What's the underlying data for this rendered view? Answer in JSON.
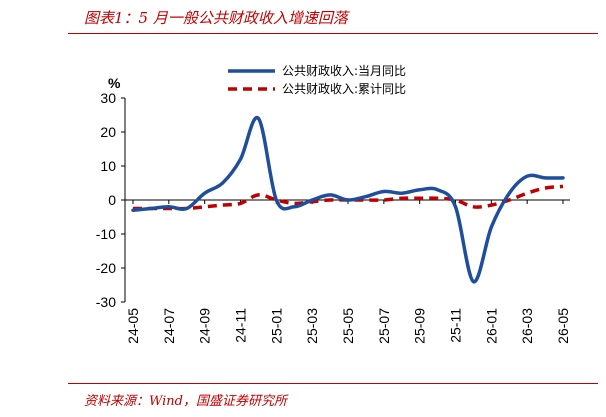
{
  "figure": {
    "title": "图表1：5 月一般公共财政收入增速回落",
    "source": "资料来源：Wind，国盛证券研究所",
    "accent_color": "#c00000"
  },
  "chart_data": {
    "type": "line",
    "unit_label": "%",
    "title": "",
    "xlabel": "",
    "ylabel": "",
    "ylim": [
      -30,
      30
    ],
    "yticks": [
      -30,
      -20,
      -10,
      0,
      10,
      20,
      30
    ],
    "x_tick_labels": [
      "24-05",
      "24-07",
      "24-09",
      "24-11",
      "25-01",
      "25-03",
      "25-05",
      "25-07",
      "25-09",
      "25-11",
      "26-01",
      "26-03",
      "26-05"
    ],
    "x": [
      "24-05",
      "24-06",
      "24-07",
      "24-08",
      "24-09",
      "24-10",
      "24-11",
      "24-12",
      "25-01",
      "25-02",
      "25-03",
      "25-04",
      "25-05",
      "25-06",
      "25-07",
      "25-08",
      "25-09",
      "25-10",
      "25-11",
      "25-12",
      "26-01",
      "26-02",
      "26-03",
      "26-04",
      "26-05"
    ],
    "grid": false,
    "legend_position": "top-center",
    "series": [
      {
        "name": "公共财政收入:当月同比",
        "color": "#1f4e9c",
        "style": "solid",
        "values": [
          -3,
          -2.5,
          -2,
          -2.5,
          2,
          5,
          12,
          24,
          0,
          -2,
          0,
          1.5,
          0,
          1,
          2.5,
          2,
          3,
          3,
          -2,
          -24,
          -8,
          2,
          7,
          6.5,
          6.5
        ]
      },
      {
        "name": "公共财政收入:累计同比",
        "color": "#c00000",
        "style": "dashed",
        "values": [
          -2.5,
          -2.5,
          -2.5,
          -2.5,
          -2,
          -1.5,
          -1,
          1.5,
          0,
          -1,
          -0.5,
          0,
          0,
          0,
          0,
          0.5,
          0.5,
          0.5,
          0,
          -2,
          -1.5,
          0,
          2,
          3.5,
          4
        ]
      }
    ]
  }
}
